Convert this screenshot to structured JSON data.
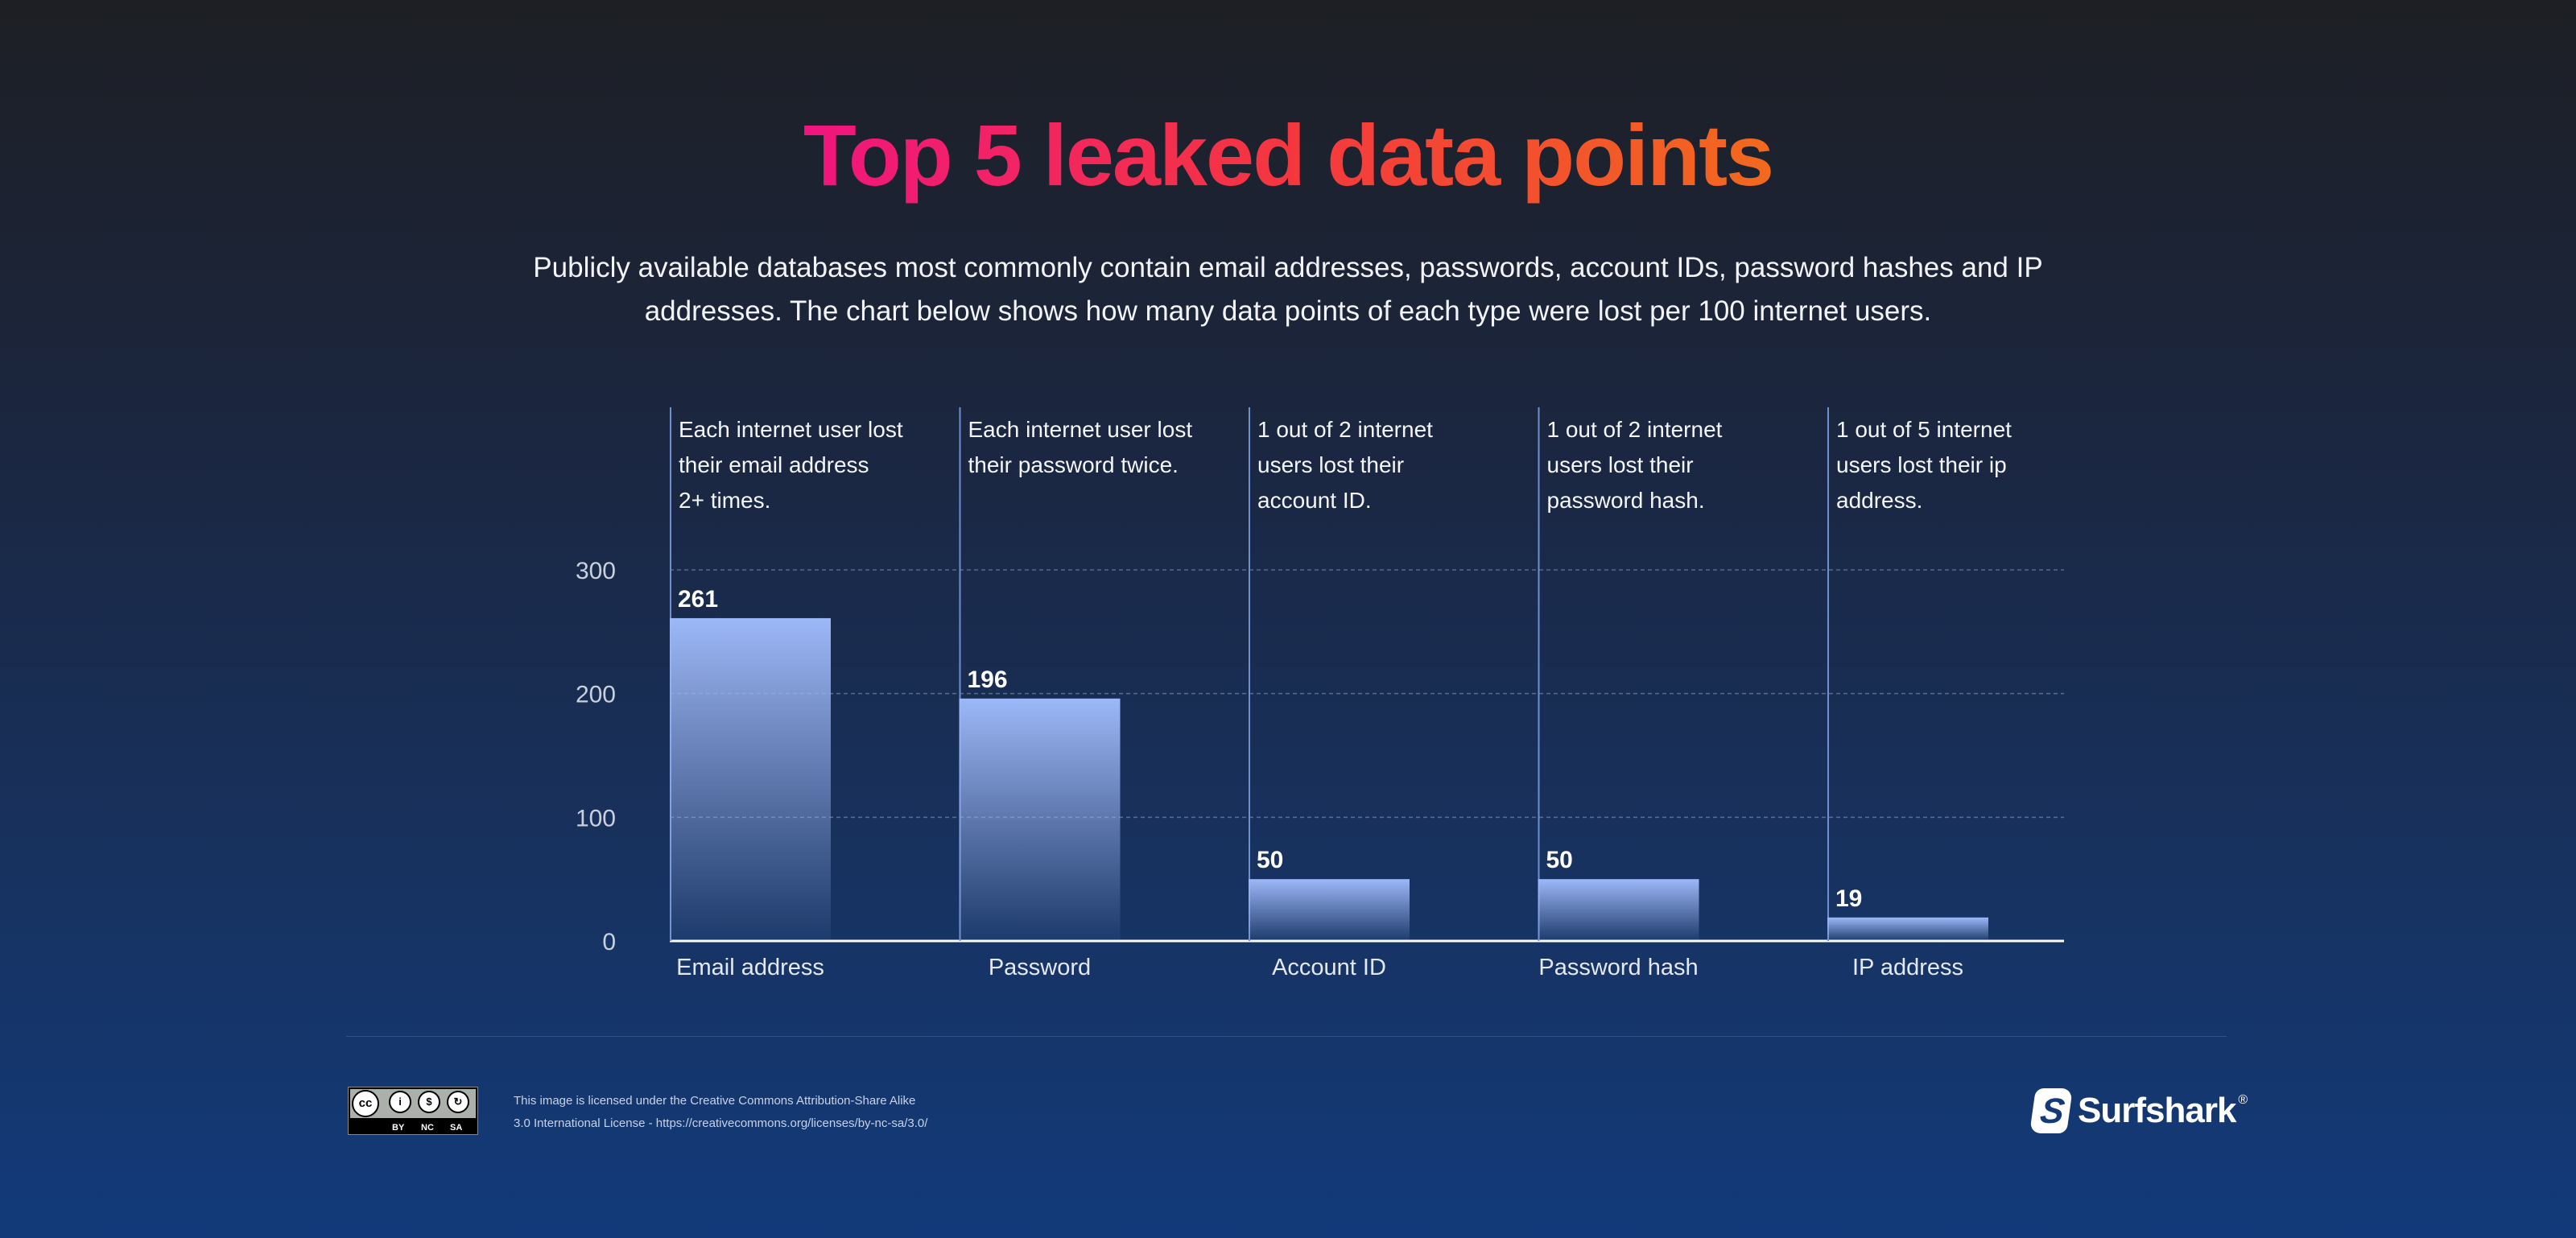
{
  "title": "Top 5 leaked data points",
  "subtitle_lines": [
    "Publicly available databases most commonly contain email addresses, passwords, account IDs, password hashes and IP",
    "addresses. The chart below shows how many data points of each type were lost per 100 internet users."
  ],
  "chart_data": {
    "type": "bar",
    "title": "Top 5 leaked data points",
    "categories": [
      "Email address",
      "Password",
      "Account ID",
      "Password hash",
      "IP address"
    ],
    "values": [
      261,
      196,
      50,
      50,
      19
    ],
    "value_labels": [
      "261",
      "196",
      "50",
      "50",
      "19"
    ],
    "annotations": [
      [
        "Each internet user lost",
        "their email address",
        "2+ times."
      ],
      [
        "Each internet user lost",
        "their password twice."
      ],
      [
        "1 out of 2 internet",
        "users lost their",
        "account ID."
      ],
      [
        "1 out of 2 internet",
        "users lost their",
        "password hash."
      ],
      [
        "1 out of 5 internet",
        "users lost their ip",
        "address."
      ]
    ],
    "yticks": [
      "0",
      "100",
      "200",
      "300"
    ],
    "ytick_values": [
      0,
      100,
      200,
      300
    ],
    "ylim": [
      0,
      300
    ],
    "grid": true,
    "xlabel": "",
    "ylabel": "",
    "colors": {
      "bar_top": "#9db8f8",
      "bar_bottom": "#1a3566",
      "annotation_line": "#6f8fd0"
    }
  },
  "footer": {
    "license_lines": [
      "This image is licensed under the Creative Commons Attribution-Share Alike",
      "3.0 International License - https://creativecommons.org/licenses/by-nc-sa/3.0/"
    ],
    "cc_badge": {
      "cc": "cc",
      "labels": [
        "BY",
        "NC",
        "SA"
      ]
    },
    "brand": "Surfshark",
    "brand_mark": "®"
  }
}
